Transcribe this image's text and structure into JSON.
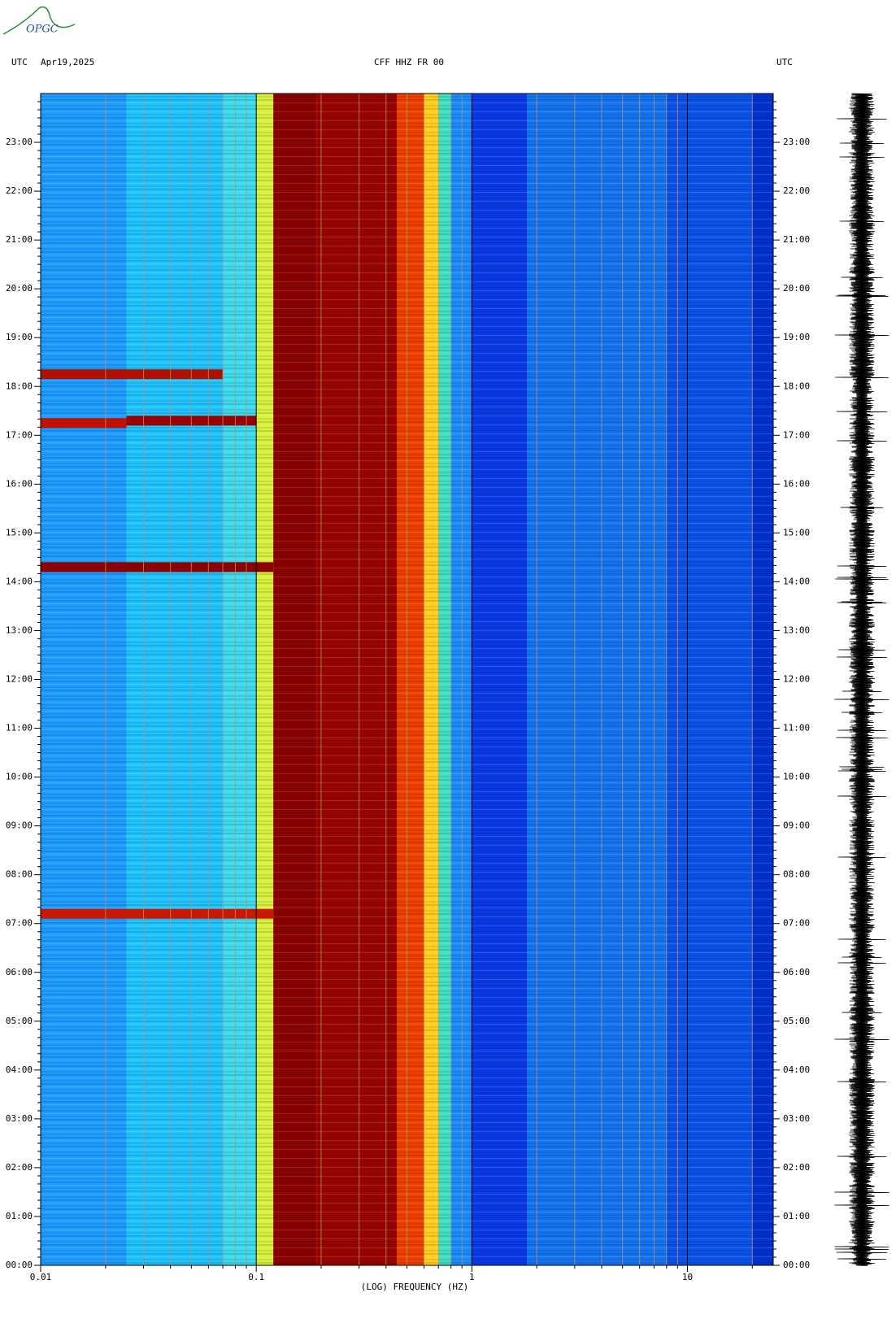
{
  "logo": "OPGC",
  "chart_data": {
    "type": "spectrogram",
    "title": "CFF HHZ FR 00",
    "date": "Apr19,2025",
    "y_label_left": "UTC",
    "y_label_right": "UTC",
    "x_label": "(LOG) FREQUENCY (HZ)",
    "xscale": "log",
    "xlim": [
      0.01,
      25
    ],
    "xticks": [
      0.01,
      0.1,
      1,
      10
    ],
    "xminorticks": [
      0.02,
      0.03,
      0.04,
      0.05,
      0.06,
      0.07,
      0.08,
      0.09,
      0.2,
      0.3,
      0.4,
      0.5,
      0.6,
      0.7,
      0.8,
      0.9,
      2,
      3,
      4,
      5,
      6,
      7,
      8,
      9,
      20
    ],
    "ylim": [
      0,
      24
    ],
    "yticks": [
      {
        "value": 0,
        "label": "00:00"
      },
      {
        "value": 1,
        "label": "01:00"
      },
      {
        "value": 2,
        "label": "02:00"
      },
      {
        "value": 3,
        "label": "03:00"
      },
      {
        "value": 4,
        "label": "04:00"
      },
      {
        "value": 5,
        "label": "05:00"
      },
      {
        "value": 6,
        "label": "06:00"
      },
      {
        "value": 7,
        "label": "07:00"
      },
      {
        "value": 8,
        "label": "08:00"
      },
      {
        "value": 9,
        "label": "09:00"
      },
      {
        "value": 10,
        "label": "10:00"
      },
      {
        "value": 11,
        "label": "11:00"
      },
      {
        "value": 12,
        "label": "12:00"
      },
      {
        "value": 13,
        "label": "13:00"
      },
      {
        "value": 14,
        "label": "14:00"
      },
      {
        "value": 15,
        "label": "15:00"
      },
      {
        "value": 16,
        "label": "16:00"
      },
      {
        "value": 17,
        "label": "17:00"
      },
      {
        "value": 18,
        "label": "18:00"
      },
      {
        "value": 19,
        "label": "19:00"
      },
      {
        "value": 20,
        "label": "20:00"
      },
      {
        "value": 21,
        "label": "21:00"
      },
      {
        "value": 22,
        "label": "22:00"
      },
      {
        "value": 23,
        "label": "23:00"
      }
    ],
    "bands": [
      {
        "from": 0.01,
        "to": 0.025,
        "color": "#1e9cff"
      },
      {
        "from": 0.025,
        "to": 0.07,
        "color": "#20c4ff"
      },
      {
        "from": 0.07,
        "to": 0.1,
        "color": "#3ddcf0"
      },
      {
        "from": 0.1,
        "to": 0.12,
        "color": "#d8f040"
      },
      {
        "from": 0.12,
        "to": 0.19,
        "color": "#8b0000"
      },
      {
        "from": 0.19,
        "to": 0.45,
        "color": "#9a0400"
      },
      {
        "from": 0.45,
        "to": 0.6,
        "color": "#f04000"
      },
      {
        "from": 0.6,
        "to": 0.7,
        "color": "#ffd020"
      },
      {
        "from": 0.7,
        "to": 0.8,
        "color": "#40e0c0"
      },
      {
        "from": 0.8,
        "to": 1,
        "color": "#1a8cff"
      },
      {
        "from": 1,
        "to": 1.8,
        "color": "#0a3ae8"
      },
      {
        "from": 1.8,
        "to": 8,
        "color": "#1474f0"
      },
      {
        "from": 8,
        "to": 20,
        "color": "#0c52e8"
      },
      {
        "from": 20,
        "to": 25,
        "color": "#0032d0"
      }
    ],
    "events": [
      {
        "time": 7.2,
        "from": 0.01,
        "to": 0.12,
        "color": "#c81800"
      },
      {
        "time": 14.3,
        "from": 0.01,
        "to": 0.12,
        "color": "#8b0000"
      },
      {
        "time": 17.3,
        "from": 0.025,
        "to": 0.1,
        "color": "#9a0000"
      },
      {
        "time": 17.25,
        "from": 0.01,
        "to": 0.025,
        "color": "#c01000"
      },
      {
        "time": 18.25,
        "from": 0.01,
        "to": 0.07,
        "color": "#b01000"
      }
    ]
  }
}
